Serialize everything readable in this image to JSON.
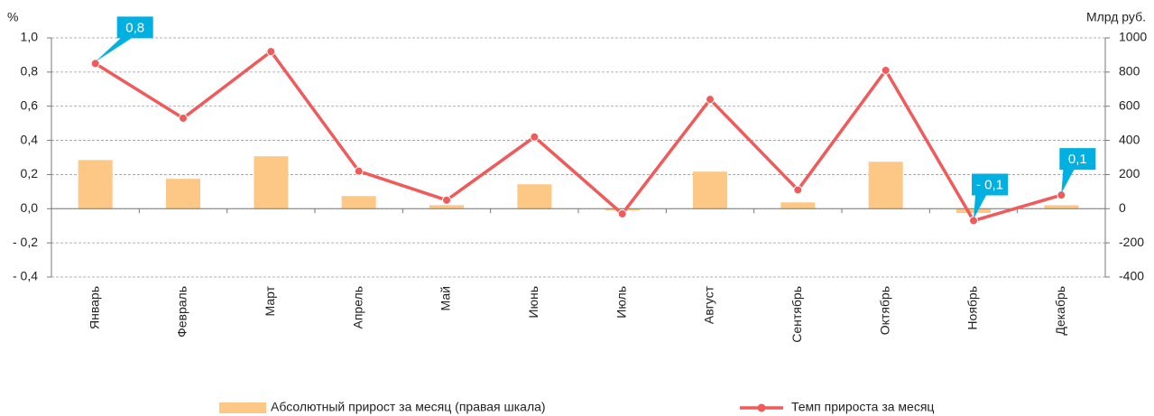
{
  "chart_data": {
    "type": "bar+line",
    "y_label": "%",
    "y2_label": "Млрд руб.",
    "categories": [
      "Январь",
      "Февраль",
      "Март",
      "Апрель",
      "Май",
      "Июнь",
      "Июль",
      "Август",
      "Сентябрь",
      "Октябрь",
      "Ноябрь",
      "Декабрь"
    ],
    "series": [
      {
        "name": "Абсолютный прирост за месяц (правая шкала)",
        "type": "bar",
        "axis": "y2",
        "color": "#fdc886",
        "values": [
          285,
          175,
          307,
          74,
          21,
          143,
          -10,
          217,
          37,
          275,
          -25,
          21
        ]
      },
      {
        "name": "Темп прироста за месяц",
        "type": "line",
        "axis": "y",
        "color": "#f05a5a",
        "values": [
          0.85,
          0.53,
          0.92,
          0.22,
          0.05,
          0.42,
          -0.03,
          0.64,
          0.11,
          0.81,
          -0.07,
          0.08
        ],
        "value_labels": [
          "0,8",
          null,
          null,
          null,
          null,
          null,
          null,
          null,
          null,
          null,
          "- 0,1",
          "0,1"
        ]
      }
    ],
    "ylim": [
      -0.4,
      1.0
    ],
    "yticks": [
      {
        "value": -0.4,
        "label": "- 0,4"
      },
      {
        "value": -0.2,
        "label": "- 0,2"
      },
      {
        "value": 0,
        "label": "0,0"
      },
      {
        "value": 0.2,
        "label": "0,2"
      },
      {
        "value": 0.4,
        "label": "0,4"
      },
      {
        "value": 0.6,
        "label": "0,6"
      },
      {
        "value": 0.8,
        "label": "0,8"
      },
      {
        "value": 1.0,
        "label": "1,0"
      }
    ],
    "y2lim": [
      -400,
      1000
    ],
    "y2ticks": [
      -400,
      -200,
      0,
      200,
      400,
      600,
      800,
      1000
    ],
    "grid": true,
    "callout_color": "#00b0e0",
    "legend": "bottom"
  }
}
